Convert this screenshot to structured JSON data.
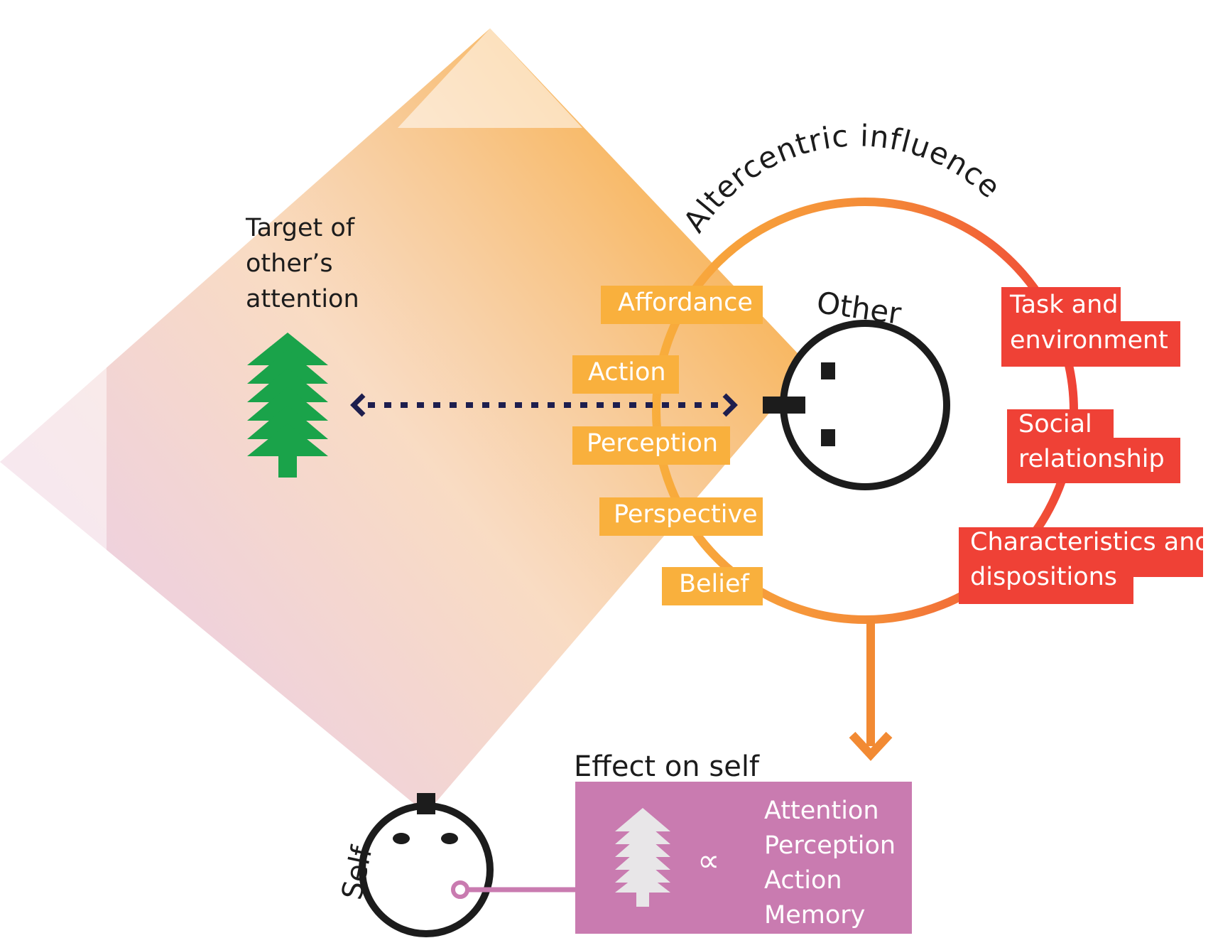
{
  "target": {
    "lines": [
      "Target of",
      "other’s",
      "attention"
    ]
  },
  "altercentric": {
    "title": "Altercentric influence"
  },
  "other": {
    "label": "Other"
  },
  "self": {
    "label": "Self"
  },
  "effect": {
    "title": "Effect on self",
    "symbol": "∝",
    "items": [
      "Attention",
      "Perception",
      "Action",
      "Memory"
    ]
  },
  "left_tags": [
    "Affordance",
    "Action",
    "Perception",
    "Perspective",
    "Belief"
  ],
  "right_tags": {
    "task": [
      "Task and",
      "environment"
    ],
    "social": [
      "Social",
      "relationship"
    ],
    "characteristics": [
      "Characteristics and",
      "dispositions"
    ]
  },
  "colors": {
    "orange": "#f9b03d",
    "deep_orange": "#f28a33",
    "red": "#ef4136",
    "tree_green": "#1aa34a",
    "purple_box": "#c97bb0",
    "navy": "#1e1e4e"
  },
  "icons": [
    "tree-icon",
    "pale-tree-icon",
    "proportional-icon",
    "arrow-down-icon"
  ]
}
